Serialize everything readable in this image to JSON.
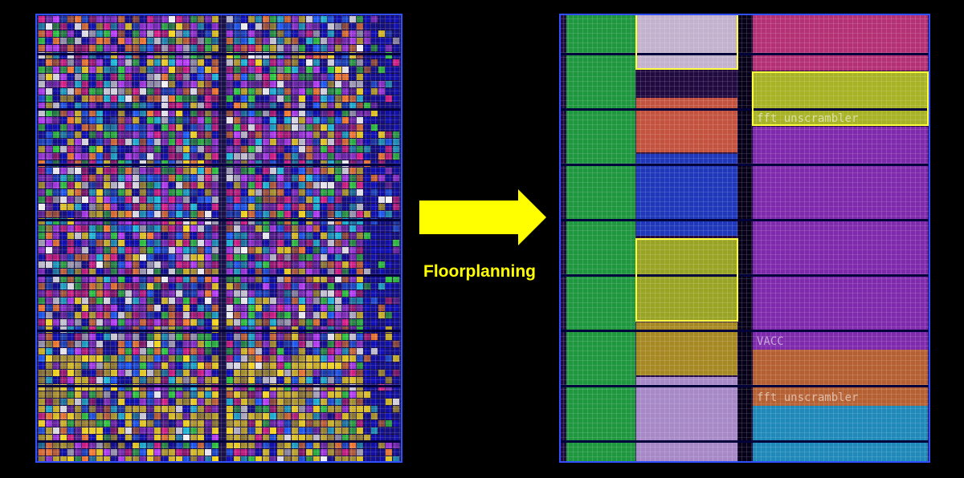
{
  "arrow_label": "Floorplanning",
  "block_labels": [
    "fft unscrambler",
    "VACC",
    "fft unscrambler"
  ]
}
